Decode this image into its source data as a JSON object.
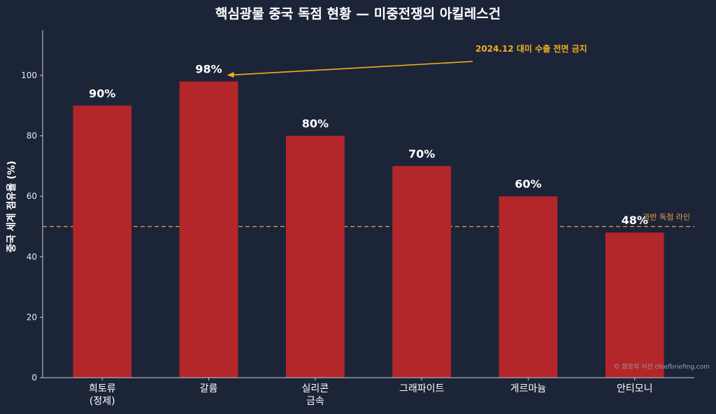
{
  "chart_data": {
    "type": "bar",
    "title": "핵심광물 중국 독점 현황 — 미중전쟁의 아킬레스건",
    "ylabel": "중국 세계 점유율 (%)",
    "xlabel": "",
    "ylim": [
      0,
      115
    ],
    "yticks": [
      0,
      20,
      40,
      60,
      80,
      100
    ],
    "grid": false,
    "categories": [
      [
        "희토류",
        "(정제)"
      ],
      [
        "갈륨"
      ],
      [
        "실리콘",
        "금속"
      ],
      [
        "그래파이트"
      ],
      [
        "게르마늄"
      ],
      [
        "안티모니"
      ]
    ],
    "values": [
      90,
      98,
      80,
      70,
      60,
      48
    ],
    "data_labels": [
      "90%",
      "98%",
      "80%",
      "70%",
      "60%",
      "48%"
    ],
    "bar_color": "#b3262a",
    "reference_line": {
      "value": 50,
      "label": "과반 독점 라인",
      "color": "#e8a33c"
    },
    "annotation": {
      "text": "2024.12 대미 수출 전면 금지",
      "target_category_index": 1,
      "color": "#f2b01e"
    },
    "credit": "© 참모의 시선 chiefbriefing.com"
  }
}
